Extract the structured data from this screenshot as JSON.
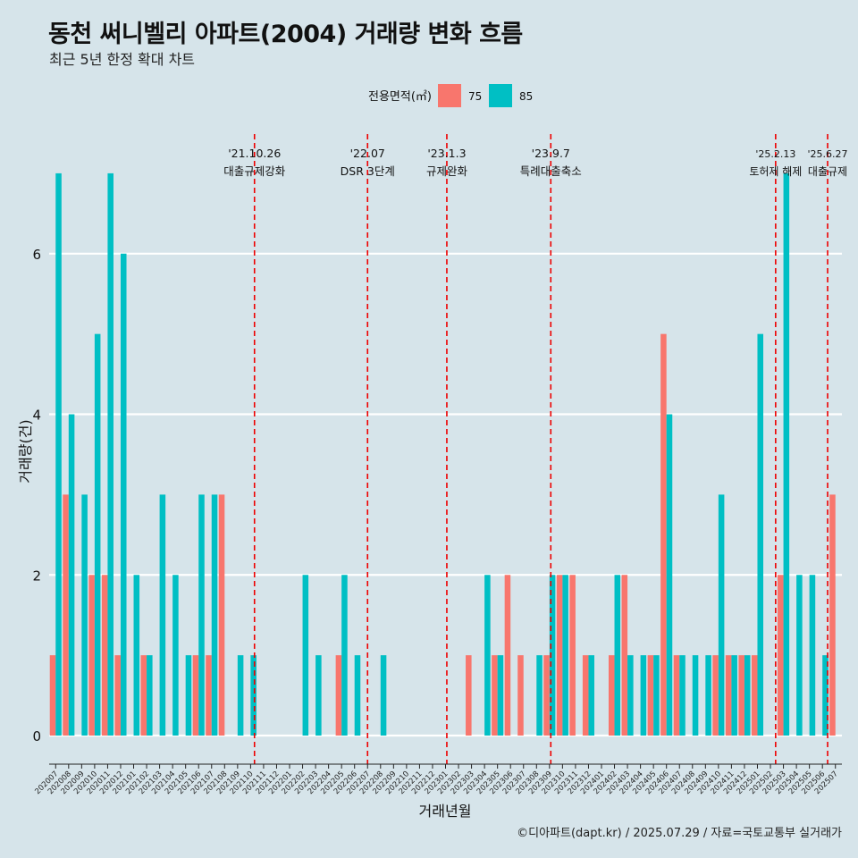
{
  "title": "동천 써니벨리 아파트(2004) 거래량 변화 흐름",
  "subtitle": "최근 5년 한정 확대 차트",
  "caption": "©디아파트(dapt.kr) / 2025.07.29 / 자료=국토교통부 실거래가",
  "colors": {
    "background": "#d6e4ea",
    "s75": "#f8766d",
    "s85": "#00bfc4",
    "event_line": "#ee0000",
    "grid": "#ffffff"
  },
  "chart_data": {
    "type": "bar",
    "xlabel": "거래년월",
    "ylabel": "거래량(건)",
    "legend_title": "전용면적(㎡)",
    "legend_position": "top",
    "grid": true,
    "ylim": [
      0,
      7
    ],
    "yticks": [
      0,
      2,
      4,
      6
    ],
    "categories": [
      "202007",
      "202008",
      "202009",
      "202010",
      "202011",
      "202012",
      "202101",
      "202102",
      "202103",
      "202104",
      "202105",
      "202106",
      "202107",
      "202108",
      "202109",
      "202110",
      "202111",
      "202112",
      "202201",
      "202202",
      "202203",
      "202204",
      "202205",
      "202206",
      "202207",
      "202208",
      "202209",
      "202210",
      "202211",
      "202212",
      "202301",
      "202302",
      "202303",
      "202304",
      "202305",
      "202306",
      "202307",
      "202308",
      "202309",
      "202310",
      "202311",
      "202312",
      "202401",
      "202402",
      "202403",
      "202404",
      "202405",
      "202406",
      "202407",
      "202408",
      "202409",
      "202410",
      "202411",
      "202412",
      "202501",
      "202502",
      "202503",
      "202504",
      "202505",
      "202506",
      "202507"
    ],
    "series": [
      {
        "name": "75",
        "values": [
          1,
          3,
          0,
          2,
          2,
          1,
          0,
          1,
          0,
          0,
          0,
          1,
          1,
          3,
          0,
          0,
          0,
          0,
          0,
          0,
          0,
          0,
          1,
          0,
          0,
          0,
          0,
          0,
          0,
          0,
          0,
          0,
          1,
          0,
          1,
          2,
          1,
          0,
          1,
          2,
          2,
          1,
          0,
          1,
          2,
          0,
          1,
          5,
          1,
          0,
          0,
          1,
          1,
          1,
          1,
          0,
          2,
          0,
          0,
          0,
          3
        ]
      },
      {
        "name": "85",
        "values": [
          7,
          4,
          3,
          5,
          7,
          6,
          2,
          1,
          3,
          2,
          1,
          3,
          3,
          0,
          1,
          1,
          0,
          0,
          0,
          2,
          1,
          0,
          2,
          1,
          0,
          1,
          0,
          0,
          0,
          0,
          0,
          0,
          0,
          2,
          1,
          0,
          0,
          1,
          2,
          2,
          0,
          1,
          0,
          2,
          1,
          1,
          1,
          4,
          1,
          1,
          1,
          3,
          1,
          1,
          5,
          0,
          7,
          2,
          2,
          1,
          0
        ]
      }
    ],
    "events": [
      {
        "date": "'21.10.26",
        "label": "대출규제강화",
        "x": 15.8
      },
      {
        "date": "'22.07",
        "label": "DSR 3단계",
        "x": 24.5
      },
      {
        "date": "'23.1.3",
        "label": "규제완화",
        "x": 30.6
      },
      {
        "date": "'23.9.7",
        "label": "특례대출축소",
        "x": 38.6
      },
      {
        "date": "'25.2.13",
        "label": "토허제 해제",
        "x": 55.9
      },
      {
        "date": "'25.6.27",
        "label": "대출규제",
        "x": 59.9
      }
    ]
  }
}
